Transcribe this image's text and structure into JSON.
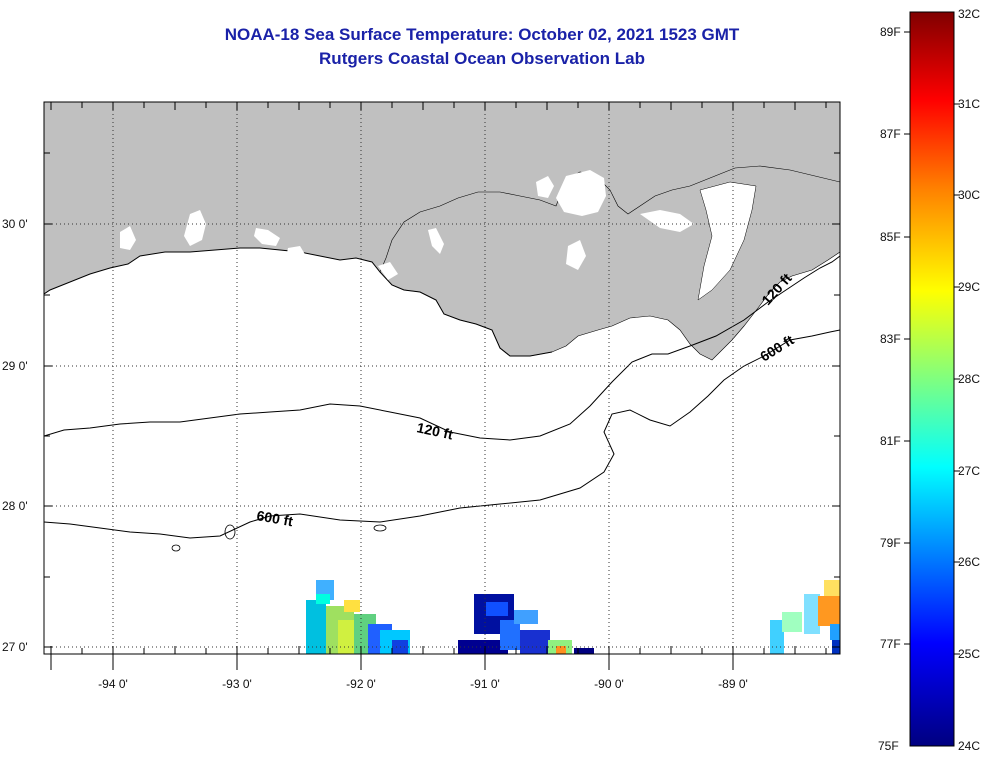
{
  "title": {
    "line1": "NOAA-18 Sea Surface Temperature:  October 02, 2021 1523 GMT",
    "line2": "Rutgers Coastal Ocean Observation Lab"
  },
  "map": {
    "lon_labels": [
      "-94 0'",
      "-93 0'",
      "-92 0'",
      "-91 0'",
      "-90 0'",
      "-89 0'"
    ],
    "lat_labels": [
      "30 0'",
      "29 0'",
      "28 0'",
      "27 0'"
    ],
    "contour_labels": {
      "shelf_120_west": "120 ft",
      "shelf_120_east": "120 ft",
      "slope_600_west": "600 ft",
      "slope_600_east": "600 ft"
    },
    "land_color": "#c0c0c0"
  },
  "colorbar": {
    "fahrenheit_labels": [
      "89F",
      "87F",
      "85F",
      "83F",
      "81F",
      "79F",
      "77F",
      "75F"
    ],
    "celsius_labels": [
      "32C",
      "31C",
      "30C",
      "29C",
      "28C",
      "27C",
      "26C",
      "25C",
      "24C"
    ],
    "colors": [
      "#000080",
      "#0000ff",
      "#00ffff",
      "#ffff00",
      "#ff8000",
      "#ff0000",
      "#800000"
    ]
  }
}
